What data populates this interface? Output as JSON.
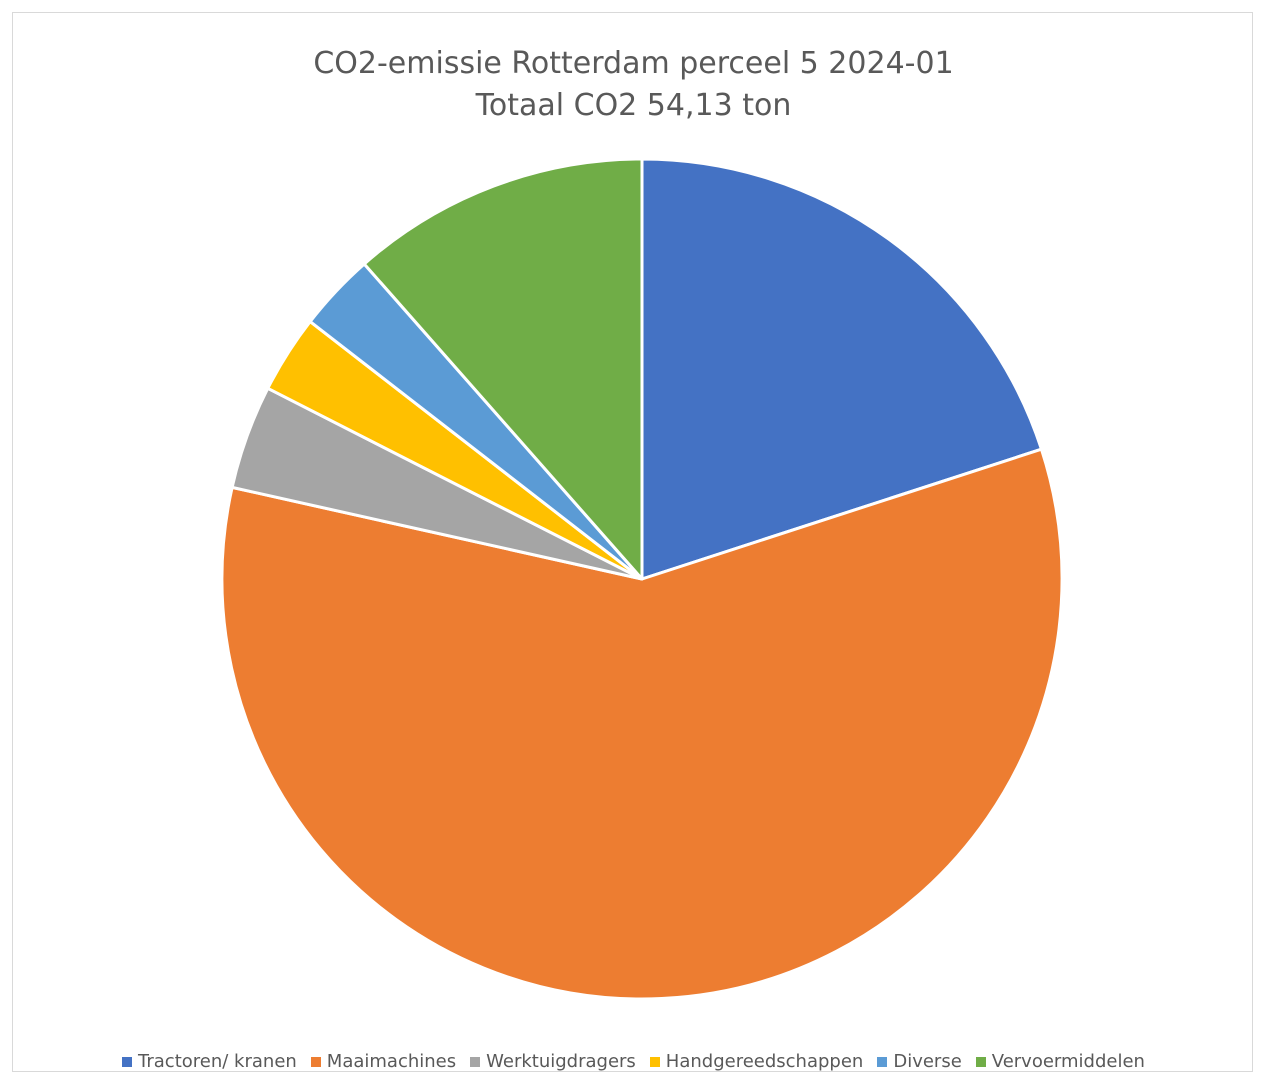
{
  "chart_data": {
    "type": "pie",
    "title": "CO2-emissie Rotterdam perceel 5 2024-01",
    "subtitle": "Totaal CO2 54,13 ton",
    "categories": [
      "Tractoren/ kranen",
      "Maaimachines",
      "Werktuigdragers",
      "Handgereedschappen",
      "Diverse",
      "Vervoermiddelen"
    ],
    "values": [
      20.0,
      58.5,
      4.0,
      3.0,
      3.0,
      11.5
    ],
    "colors": [
      "#4472C4",
      "#ED7D31",
      "#A5A5A5",
      "#FFC000",
      "#5B9BD5",
      "#70AD47"
    ],
    "legend_position": "bottom",
    "start_angle": "12 o'clock",
    "direction": "clockwise"
  }
}
